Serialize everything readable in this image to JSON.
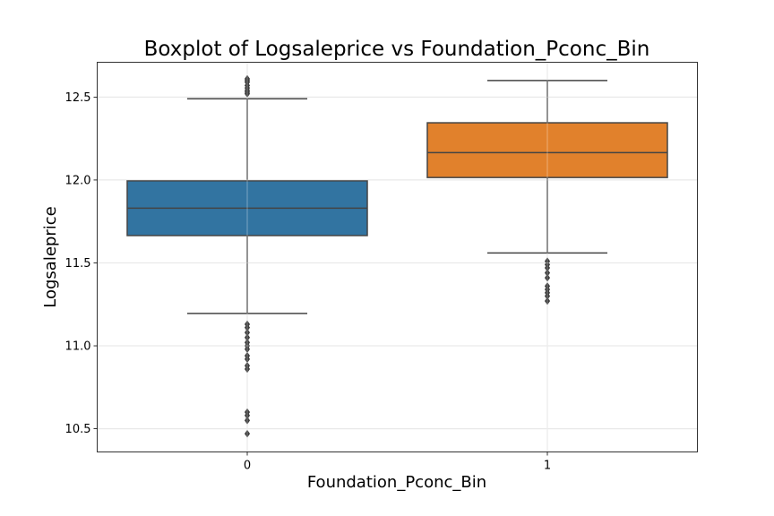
{
  "chart_data": {
    "type": "boxplot",
    "title": "Boxplot of Logsaleprice vs Foundation_Pconc_Bin",
    "xlabel": "Foundation_Pconc_Bin",
    "ylabel": "Logsaleprice",
    "ylim": [
      10.36,
      12.71
    ],
    "yticks": [
      10.5,
      11.0,
      11.5,
      12.0,
      12.5
    ],
    "ytick_labels": [
      "10.5",
      "11.0",
      "11.5",
      "12.0",
      "12.5"
    ],
    "grid": true,
    "categories": [
      "0",
      "1"
    ],
    "boxes": [
      {
        "category": "0",
        "color": "#3274a1",
        "q1": 11.665,
        "median": 11.83,
        "q3": 11.995,
        "whisker_low": 11.195,
        "whisker_high": 12.49,
        "outliers": [
          12.52,
          12.53,
          12.54,
          12.555,
          12.57,
          12.59,
          12.6,
          12.61,
          11.13,
          11.11,
          11.08,
          11.05,
          11.02,
          11.0,
          10.98,
          10.94,
          10.92,
          10.88,
          10.86,
          10.6,
          10.58,
          10.55,
          10.47
        ]
      },
      {
        "category": "1",
        "color": "#e1812c",
        "q1": 12.015,
        "median": 12.165,
        "q3": 12.345,
        "whisker_low": 11.56,
        "whisker_high": 12.6,
        "outliers": [
          11.51,
          11.49,
          11.47,
          11.44,
          11.41,
          11.36,
          11.34,
          11.32,
          11.3,
          11.27
        ]
      }
    ]
  }
}
